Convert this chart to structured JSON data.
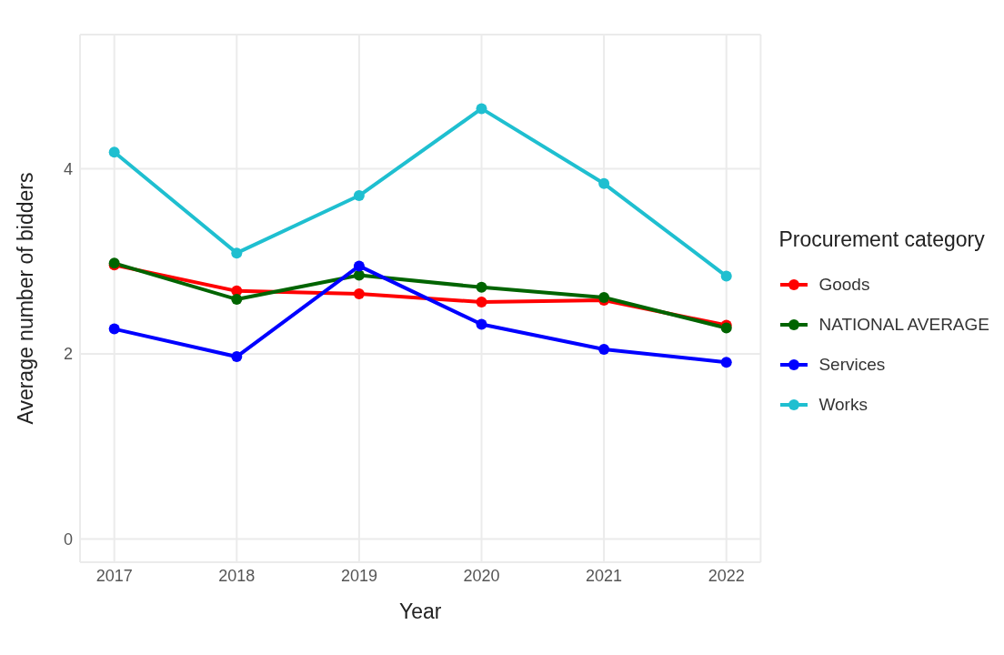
{
  "chart_data": {
    "type": "line",
    "xlabel": "Year",
    "ylabel": "Average number of bidders",
    "legend_title": "Procurement category",
    "x": [
      2017,
      2018,
      2019,
      2020,
      2021,
      2022
    ],
    "series": [
      {
        "name": "Goods",
        "color": "#ff0000",
        "values": [
          2.96,
          2.68,
          2.65,
          2.56,
          2.58,
          2.31
        ]
      },
      {
        "name": "NATIONAL AVERAGE",
        "color": "#006400",
        "values": [
          2.98,
          2.59,
          2.85,
          2.72,
          2.61,
          2.28
        ]
      },
      {
        "name": "Services",
        "color": "#0000ff",
        "values": [
          2.27,
          1.97,
          2.95,
          2.32,
          2.05,
          1.91
        ]
      },
      {
        "name": "Works",
        "color": "#1fbfd0",
        "values": [
          4.18,
          3.09,
          3.71,
          4.65,
          3.84,
          2.84
        ]
      }
    ],
    "xlim": [
      2016.72,
      2022.28
    ],
    "xticks": [
      2017,
      2018,
      2019,
      2020,
      2021,
      2022
    ],
    "ylim": [
      -0.25,
      5.45
    ],
    "yticks": [
      0,
      2,
      4
    ],
    "grid": true,
    "legend": "right",
    "marker": "circle",
    "line_style": "solid"
  }
}
